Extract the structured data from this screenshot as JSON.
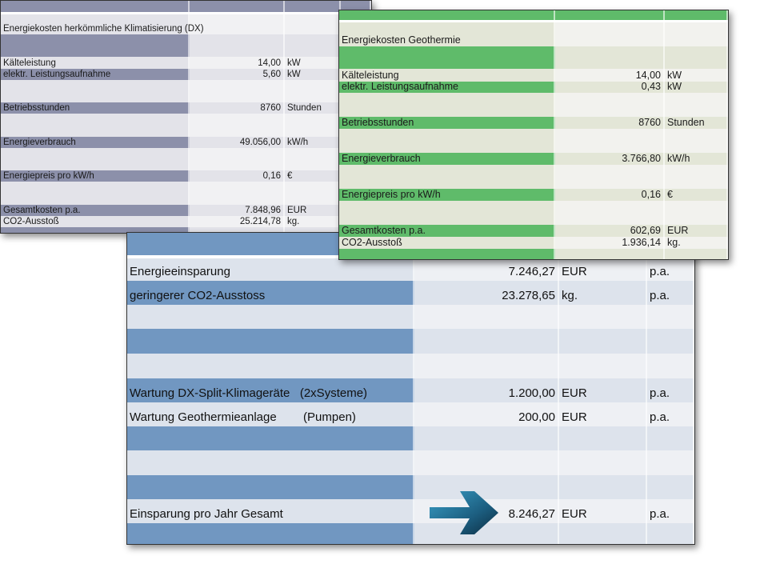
{
  "colors": {
    "dx_dark": "#8c90aa",
    "dx_light": "#e3e3e9",
    "dx_alt": "#f1f1f3",
    "geo_dark": "#5fbb6a",
    "geo_light": "#e3e6d7",
    "geo_alt": "#f2f2ee",
    "sum_dark": "#7197c1",
    "sum_light": "#dde3ec",
    "sum_alt": "#eef0f4"
  },
  "dx": {
    "title": "Energiekosten herkömmliche Klimatisierung (DX)",
    "rows": [
      {
        "label": "Kälteleistung",
        "value": "14,00",
        "unit": "kW"
      },
      {
        "label": "elektr. Leistungsaufnahme",
        "value": "5,60",
        "unit": "kW"
      },
      {
        "label": "Betriebsstunden",
        "value": "8760",
        "unit": "Stunden"
      },
      {
        "label": "Energieverbrauch",
        "value": "49.056,00",
        "unit": "kW/h"
      },
      {
        "label": "Energiepreis pro kW/h",
        "value": "0,16",
        "unit": "€"
      },
      {
        "label": "Gesamtkosten p.a.",
        "value": "7.848,96",
        "unit": "EUR"
      },
      {
        "label": "CO2-Ausstoß",
        "value": "25.214,78",
        "unit": "kg."
      }
    ]
  },
  "geo": {
    "title": "Energiekosten Geothermie",
    "rows": [
      {
        "label": "Kälteleistung",
        "value": "14,00",
        "unit": "kW"
      },
      {
        "label": "elektr. Leistungsaufnahme",
        "value": "0,43",
        "unit": "kW"
      },
      {
        "label": "Betriebsstunden",
        "value": "8760",
        "unit": "Stunden"
      },
      {
        "label": "Energieverbrauch",
        "value": "3.766,80",
        "unit": "kW/h"
      },
      {
        "label": "Energiepreis pro kW/h",
        "value": "0,16",
        "unit": "€"
      },
      {
        "label": "Gesamtkosten p.a.",
        "value": "602,69",
        "unit": "EUR"
      },
      {
        "label": "CO2-Ausstoß",
        "value": "1.936,14",
        "unit": "kg."
      }
    ]
  },
  "summary": {
    "rows": [
      {
        "label": "Energieeinsparung",
        "value": "7.246,27",
        "unit": "EUR",
        "period": "p.a."
      },
      {
        "label": "geringerer CO2-Ausstoss",
        "value": "23.278,65",
        "unit": "kg.",
        "period": "p.a."
      },
      {
        "label": "Wartung DX-Split-Klimageräte   (2xSysteme)",
        "value": "1.200,00",
        "unit": "EUR",
        "period": "p.a."
      },
      {
        "label": "Wartung Geothermieanlage        (Pumpen)",
        "value": "200,00",
        "unit": "EUR",
        "period": "p.a."
      },
      {
        "label": "Einsparung pro Jahr Gesamt",
        "value": "8.246,27",
        "unit": "EUR",
        "period": "p.a."
      }
    ]
  }
}
